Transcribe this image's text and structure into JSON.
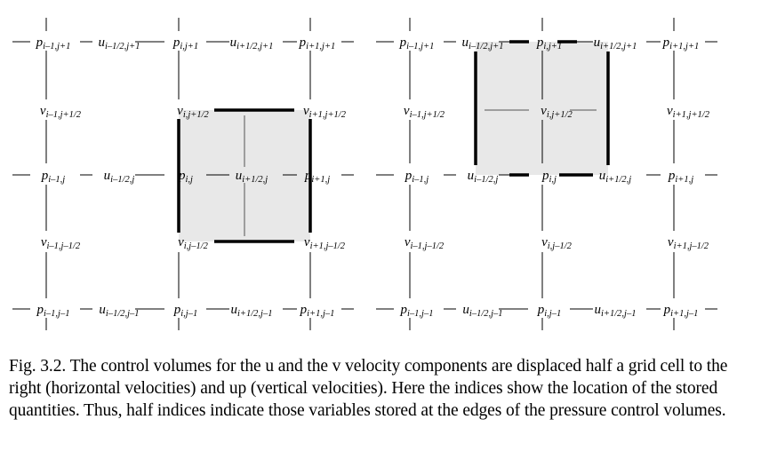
{
  "diagrams": [
    {
      "control_volume": "u",
      "rows": [
        {
          "p": [
            "p_{i-1,j+1}",
            "p_{i,j+1}",
            "p_{i+1,j+1}"
          ],
          "u": [
            "u_{i-1/2,j+1}",
            "u_{i+1/2,j+1}"
          ]
        },
        {
          "v": [
            "v_{i-1,j+1/2}",
            "v_{i,j+1/2}",
            "v_{i+1,j+1/2}"
          ]
        },
        {
          "p": [
            "p_{i-1,j}",
            "p_{i,j}",
            "p_{i+1,j}"
          ],
          "u": [
            "u_{i-1/2,j}",
            "u_{i+1/2,j}"
          ]
        },
        {
          "v": [
            "v_{i-1,j-1/2}",
            "v_{i,j-1/2}",
            "v_{i+1,j-1/2}"
          ]
        },
        {
          "p": [
            "p_{i-1,j-1}",
            "p_{i,j-1}",
            "p_{i+1,j-1}"
          ],
          "u": [
            "u_{i-1/2,j-1}",
            "u_{i+1/2,j-1}"
          ]
        }
      ]
    },
    {
      "control_volume": "v",
      "rows": [
        {
          "p": [
            "p_{i-1,j+1}",
            "p_{i,j+1}",
            "p_{i+1,j+1}"
          ],
          "u": [
            "u_{i-1/2,j+1}",
            "u_{i+1/2,j+1}"
          ]
        },
        {
          "v": [
            "v_{i-1,j+1/2}",
            "v_{i,j+1/2}",
            "v_{i+1,j+1/2}"
          ]
        },
        {
          "p": [
            "p_{i-1,j}",
            "p_{i,j}",
            "p_{i+1,j}"
          ],
          "u": [
            "u_{i-1/2,j}",
            "u_{i+1/2,j}"
          ]
        },
        {
          "v": [
            "v_{i-1,j-1/2}",
            "v_{i,j-1/2}",
            "v_{i+1,j-1/2}"
          ]
        },
        {
          "p": [
            "p_{i-1,j-1}",
            "p_{i,j-1}",
            "p_{i+1,j-1}"
          ],
          "u": [
            "u_{i-1/2,j-1}",
            "u_{i+1/2,j-1}"
          ]
        }
      ]
    }
  ],
  "caption": {
    "fig_label": "Fig. 3.2.",
    "text": "The control volumes for the u and the v velocity components are displaced half a grid cell to the right (horizontal velocities) and up (vertical velocities). Here the indices show the location of the stored quantities. Thus, half indices indicate those variables stored at the edges of the pressure control volumes."
  },
  "colors": {
    "cell_fill": "#e8e8e8",
    "line": "#000000",
    "thin_line": "#555555"
  }
}
